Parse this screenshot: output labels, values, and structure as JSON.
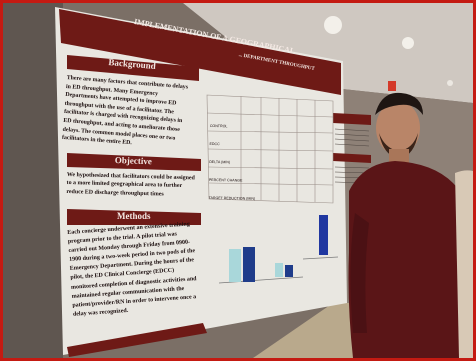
{
  "poster": {
    "title": "IMPLEMENTATION OF A GEOGRAPHICAL ...",
    "authors_line": "... DEPARTMENT THROUGHPUT",
    "background_heading": "Background",
    "background_text": [
      "There are many factors that contribute to delays",
      "in ED throughput. Many Emergency",
      "Departments have attempted to improve ED",
      "throughput with the use of a facilitator. The",
      "facilitator is charged with recognizing delays in",
      "ED throughput, and acting to ameliorate those",
      "delays. The common model places one or two",
      "facilitators in the entire ED."
    ],
    "objective_heading": "Objective",
    "objective_text": [
      "We hypothesized that facilitators could be assigned",
      "to a more limited geographical area to further",
      "reduce ED discharge throughput times"
    ],
    "methods_heading": "Methods",
    "methods_text": [
      "Each concierge underwent an extensive training",
      "program prior to the trial. A pilot trial was",
      "carried out Monday through Friday from 0900-",
      "1900 during a two-week period in two pods of the",
      "Emergency Department. During the hours of the",
      "pilot, the ED Clinical Concierge (EDCC)",
      "monitored completion of diagnostic activities and",
      "maintained regular communication with the",
      "patient/provider/RN in order to intervene once a",
      "delay was recognized."
    ],
    "table_rows": [
      "CONTROL",
      "EDCC",
      "DELTA (MIN)",
      "PERCENT CHANGE",
      "TARGET REDUCTION (MIN)"
    ]
  },
  "colors": {
    "poster_maroon": "#6e1a16",
    "poster_paper": "#ecebe6",
    "sweater": "#5a1517",
    "frame": "#c41a12"
  }
}
